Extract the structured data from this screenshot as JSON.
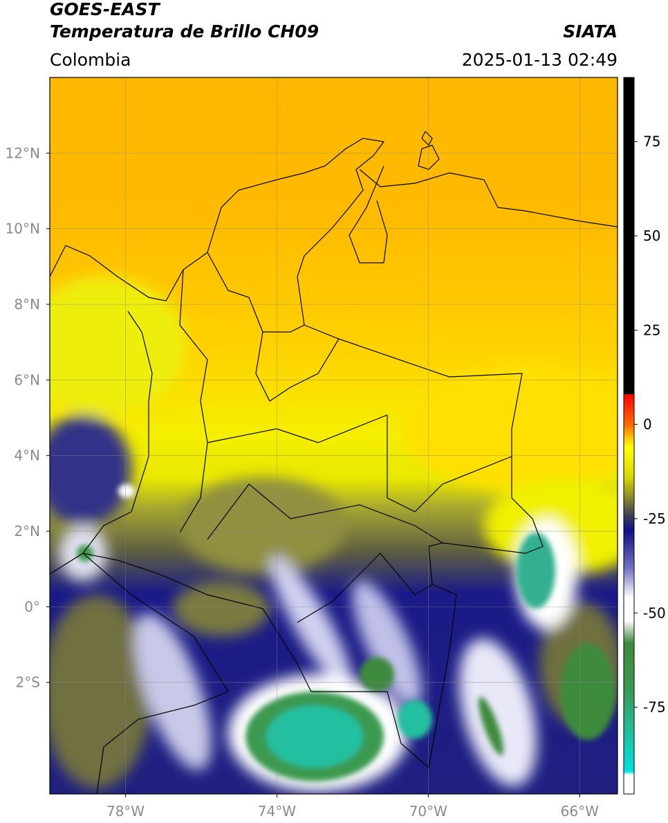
{
  "header": {
    "title": "GOES-EAST",
    "subtitle": "Temperatura de Brillo CH09",
    "source": "SIATA",
    "region": "Colombia",
    "datetime": "2025-01-13 02:49"
  },
  "map": {
    "xlim": [
      -80,
      -65
    ],
    "ylim": [
      -4.95,
      14
    ],
    "grid": true,
    "xticks": [
      {
        "value": -78,
        "label": "78°W"
      },
      {
        "value": -74,
        "label": "74°W"
      },
      {
        "value": -70,
        "label": "70°W"
      },
      {
        "value": -66,
        "label": "66°W"
      }
    ],
    "yticks": [
      {
        "value": 12,
        "label": "12°N"
      },
      {
        "value": 10,
        "label": "10°N"
      },
      {
        "value": 8,
        "label": "8°N"
      },
      {
        "value": 6,
        "label": "6°N"
      },
      {
        "value": 4,
        "label": "4°N"
      },
      {
        "value": 2,
        "label": "2°N"
      },
      {
        "value": 0,
        "label": "0°"
      },
      {
        "value": -2,
        "label": "2°S"
      }
    ]
  },
  "colorbar": {
    "ylim": [
      -98,
      92
    ],
    "yticks": [
      75,
      50,
      25,
      0,
      -25,
      -50,
      -75
    ],
    "colormap": [
      {
        "value": 92,
        "color": "#000000"
      },
      {
        "value": 8,
        "color": "#000000"
      },
      {
        "value": 8,
        "color": "#ff0000"
      },
      {
        "value": 0,
        "color": "#ff6a00"
      },
      {
        "value": -6,
        "color": "#ffff00"
      },
      {
        "value": -14,
        "color": "#d8d800"
      },
      {
        "value": -20,
        "color": "#808030"
      },
      {
        "value": -24,
        "color": "#404050"
      },
      {
        "value": -28,
        "color": "#10108a"
      },
      {
        "value": -38,
        "color": "#7070c0"
      },
      {
        "value": -46,
        "color": "#ffffff"
      },
      {
        "value": -52,
        "color": "#ffffff"
      },
      {
        "value": -58,
        "color": "#3d8a3d"
      },
      {
        "value": -70,
        "color": "#3a9a50"
      },
      {
        "value": -82,
        "color": "#20c0a0"
      },
      {
        "value": -92,
        "color": "#00e0e0"
      },
      {
        "value": -93,
        "color": "#ffffff"
      },
      {
        "value": -98,
        "color": "#ffffff"
      }
    ]
  }
}
